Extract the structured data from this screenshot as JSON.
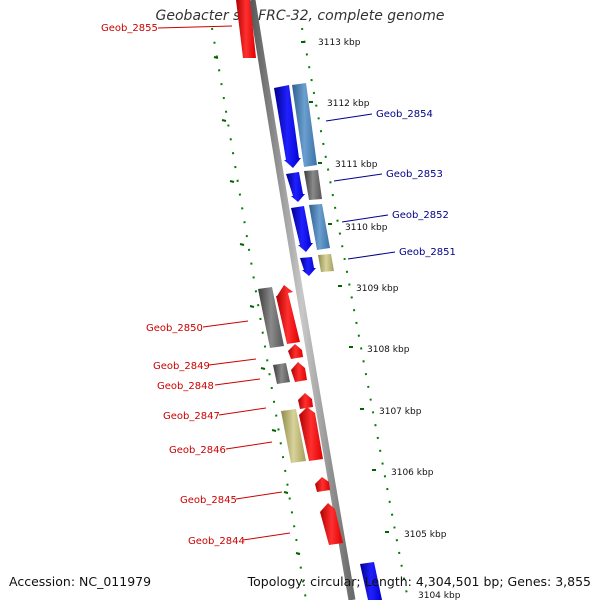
{
  "title": "Geobacter sp. FRC-32, complete genome",
  "footer": {
    "accession": "Accession: NC_011979",
    "summary": "Topology: circular; Length: 4,304,501 bp; Genes: 3,855"
  },
  "colors": {
    "forward_cds": "#0000ff",
    "forward_cds_alt": "#4682b4",
    "reverse_cds": "#ff0000",
    "other_gene_gray": "#696969",
    "other_gene_khaki": "#bdb76b",
    "backbone": "#808080",
    "ticks": "#008000",
    "forward_label": "#00008b",
    "reverse_label": "#cc0000"
  },
  "ticks": [
    "3113 kbp",
    "3112 kbp",
    "3111 kbp",
    "3110 kbp",
    "3109 kbp",
    "3108 kbp",
    "3107 kbp",
    "3106 kbp",
    "3105 kbp",
    "3104 kbp"
  ],
  "forward_labels": [
    "Geob_2854",
    "Geob_2853",
    "Geob_2852",
    "Geob_2851"
  ],
  "reverse_labels": [
    "Geob_2855",
    "Geob_2850",
    "Geob_2849",
    "Geob_2848",
    "Geob_2847",
    "Geob_2846",
    "Geob_2845",
    "Geob_2844"
  ]
}
